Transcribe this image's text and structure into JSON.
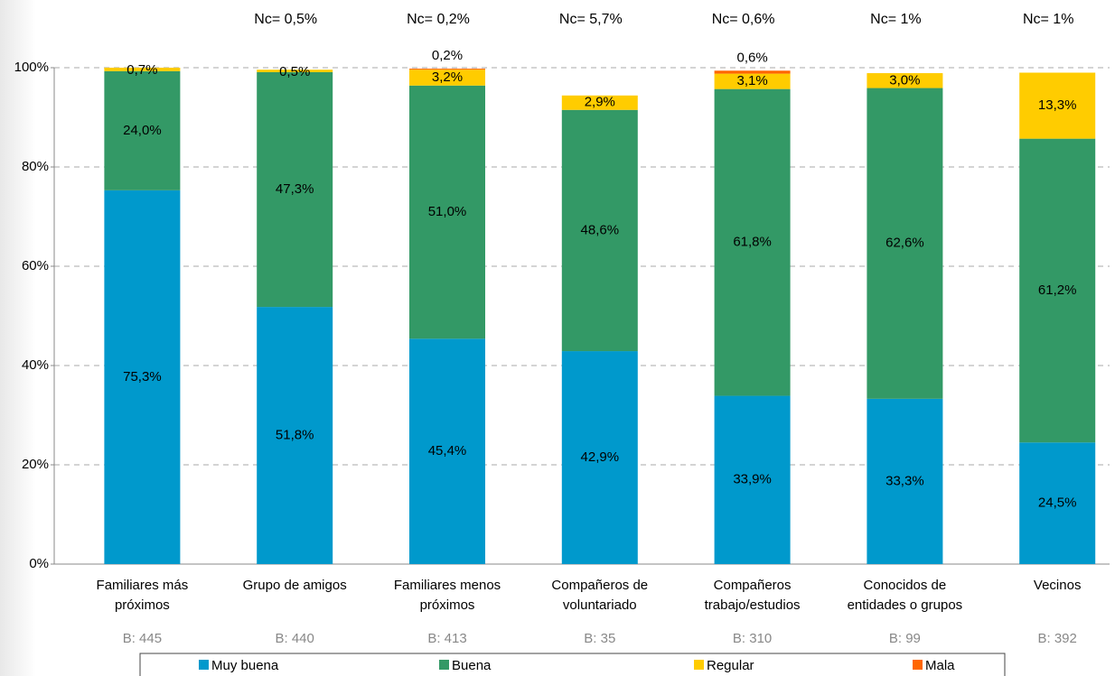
{
  "chart_data": {
    "type": "stacked_bar",
    "categories": [
      "Familiares más próximos",
      "Grupo de amigos",
      "Familiares menos próximos",
      "Compañeros de voluntariado",
      "Compañeros trabajo/estudios",
      "Conocidos de entidades o grupos",
      "Vecinos"
    ],
    "top_annotations": [
      "Nc= 0,5%",
      "Nc= 0,2%",
      "Nc= 5,7%",
      "Nc= 0,6%",
      "Nc= 1%",
      "Nc= 1%"
    ],
    "base_labels": [
      "B: 445",
      "B: 440",
      "B: 413",
      "B: 35",
      "B: 310",
      "B: 99",
      "B: 392"
    ],
    "series": [
      {
        "name": "Muy buena",
        "color": "#0099cc",
        "values": [
          75.3,
          51.8,
          45.4,
          42.9,
          33.9,
          33.3,
          24.5
        ],
        "value_labels": [
          "75,3%",
          "51,8%",
          "45,4%",
          "42,9%",
          "33,9%",
          "33,3%",
          "24,5%"
        ]
      },
      {
        "name": "Buena",
        "color": "#339966",
        "values": [
          24.0,
          47.3,
          51.0,
          48.6,
          61.8,
          62.6,
          61.2
        ],
        "value_labels": [
          "24,0%",
          "47,3%",
          "51,0%",
          "48,6%",
          "61,8%",
          "62,6%",
          "61,2%"
        ]
      },
      {
        "name": "Regular",
        "color": "#ffcc00",
        "values": [
          0.7,
          0.5,
          3.2,
          2.9,
          3.1,
          3.0,
          13.3
        ],
        "value_labels": [
          "0,7%",
          "0,5%",
          "3,2%",
          "2,9%",
          "3,1%",
          "3,0%",
          "13,3%"
        ]
      },
      {
        "name": "Mala",
        "color": "#ff6600",
        "values": [
          null,
          null,
          0.2,
          null,
          0.6,
          null,
          null
        ],
        "value_labels": [
          null,
          null,
          "0,2%",
          null,
          "0,6%",
          null,
          null
        ]
      }
    ],
    "ylim": [
      0,
      100
    ],
    "yticks": [
      {
        "value": 0,
        "label": "0%"
      },
      {
        "value": 20,
        "label": "20%"
      },
      {
        "value": 40,
        "label": "40%"
      },
      {
        "value": 60,
        "label": "60%"
      },
      {
        "value": 80,
        "label": "80%"
      },
      {
        "value": 100,
        "label": "100%"
      }
    ],
    "grid": true
  }
}
